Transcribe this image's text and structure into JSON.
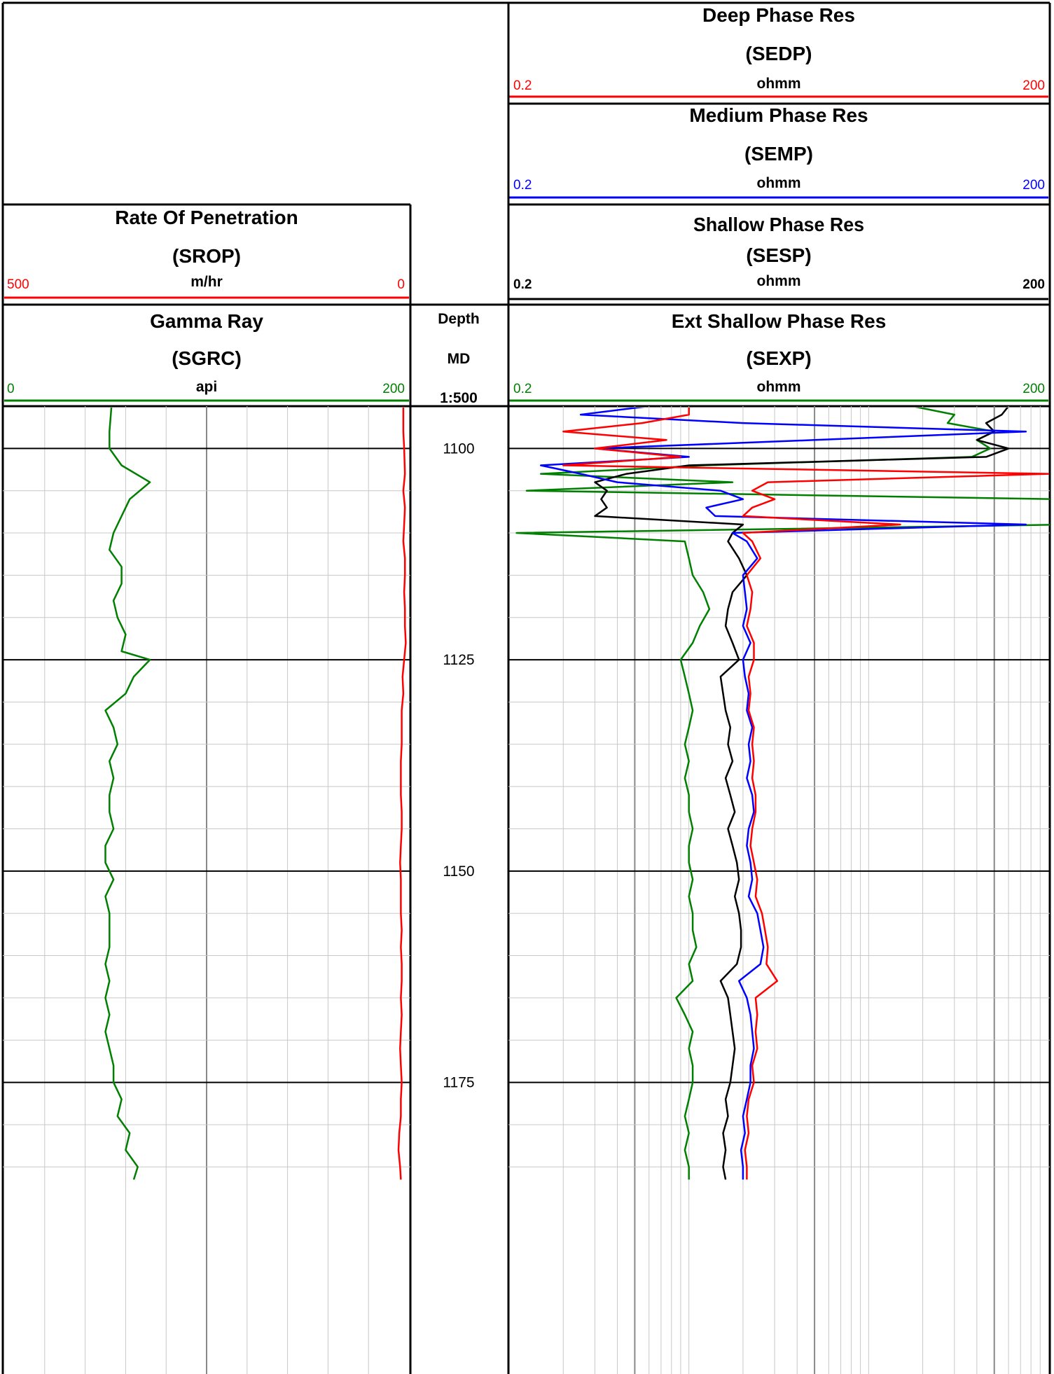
{
  "headers": {
    "deep": {
      "title": "Deep Phase Res",
      "mnemonic": "(SEDP)",
      "unit": "ohmm",
      "min": "0.2",
      "max": "200",
      "color": "#ff0000"
    },
    "medium": {
      "title": "Medium Phase Res",
      "mnemonic": "(SEMP)",
      "unit": "ohmm",
      "min": "0.2",
      "max": "200",
      "color": "#0000ff"
    },
    "shallow": {
      "title": "Shallow Phase Res",
      "mnemonic": "(SESP)",
      "unit": "ohmm",
      "min": "0.2",
      "max": "200",
      "color": "#000000"
    },
    "extshallow": {
      "title": "Ext Shallow Phase Res",
      "mnemonic": "(SEXP)",
      "unit": "ohmm",
      "min": "0.2",
      "max": "200",
      "color": "#008000"
    },
    "rop": {
      "title": "Rate Of Penetration",
      "mnemonic": "(SROP)",
      "unit": "m/hr",
      "min": "500",
      "max": "0",
      "color": "#ff0000"
    },
    "gamma": {
      "title": "Gamma Ray",
      "mnemonic": "(SGRC)",
      "unit": "api",
      "min": "0",
      "max": "200",
      "color": "#008000"
    },
    "depth": {
      "title": "Depth",
      "mnemonic": "MD",
      "scale": "1:500"
    }
  },
  "chart_data": {
    "type": "line",
    "depth_range": [
      1095,
      1186.5
    ],
    "depth_ticks": [
      "1100",
      "1125",
      "1150",
      "1175"
    ],
    "tracks": [
      {
        "name": "Rate Of Penetration",
        "scale": "linear",
        "range": [
          500,
          0
        ],
        "unit": "m/hr"
      },
      {
        "name": "Gamma Ray",
        "scale": "linear",
        "range": [
          0,
          200
        ],
        "unit": "api"
      },
      {
        "name": "Resistivity",
        "scale": "log",
        "range": [
          0.2,
          200
        ],
        "unit": "ohmm"
      }
    ],
    "series": [
      {
        "name": "SGRC",
        "track": 0,
        "scale": "linear",
        "range": [
          0,
          200
        ],
        "color": "#008000",
        "x": [
          1095,
          1098,
          1100,
          1102,
          1104,
          1106,
          1108,
          1110,
          1112,
          1114,
          1116,
          1118,
          1120,
          1122,
          1124,
          1125,
          1127,
          1129,
          1131,
          1133,
          1135,
          1137,
          1139,
          1141,
          1143,
          1145,
          1147,
          1149,
          1151,
          1153,
          1155,
          1157,
          1159,
          1161,
          1163,
          1165,
          1167,
          1169,
          1171,
          1173,
          1175,
          1177,
          1179,
          1181,
          1183,
          1185,
          1186.5
        ],
        "y": [
          53,
          52,
          52,
          58,
          72,
          62,
          58,
          54,
          52,
          58,
          58,
          54,
          56,
          60,
          58,
          72,
          64,
          60,
          50,
          54,
          56,
          52,
          54,
          52,
          52,
          54,
          50,
          50,
          54,
          50,
          52,
          52,
          52,
          50,
          52,
          50,
          52,
          50,
          52,
          54,
          54,
          58,
          56,
          62,
          60,
          66,
          64
        ]
      },
      {
        "name": "SROP",
        "track": 0,
        "scale": "linear",
        "range": [
          500,
          0
        ],
        "color": "#ff0000",
        "x": [
          1095,
          1098,
          1100,
          1103,
          1105,
          1107,
          1109,
          1111,
          1113,
          1115,
          1117,
          1119,
          1121,
          1123,
          1125,
          1127,
          1129,
          1131,
          1133,
          1135,
          1137,
          1139,
          1141,
          1143,
          1145,
          1147,
          1149,
          1151,
          1153,
          1155,
          1157,
          1159,
          1161,
          1163,
          1165,
          1167,
          1169,
          1171,
          1173,
          1175,
          1177,
          1179,
          1181,
          1183,
          1185,
          1186.5
        ],
        "y": [
          7,
          7,
          6,
          5,
          7,
          5,
          6,
          7,
          5,
          5,
          6,
          5,
          5,
          4,
          6,
          8,
          7,
          9,
          9,
          9,
          10,
          10,
          10,
          9,
          9,
          10,
          11,
          10,
          10,
          10,
          9,
          10,
          9,
          9,
          10,
          9,
          10,
          11,
          10,
          9,
          10,
          10,
          12,
          13,
          11,
          10
        ]
      },
      {
        "name": "SEXP",
        "track": 2,
        "scale": "log",
        "range": [
          0.2,
          200
        ],
        "color": "#008000",
        "x": [
          1095,
          1096,
          1097,
          1098,
          1099,
          1100,
          1101,
          1102,
          1103,
          1104,
          1105,
          1106,
          1107,
          1108,
          1109,
          1110,
          1111,
          1113,
          1115,
          1117,
          1119,
          1121,
          1123,
          1125,
          1127,
          1129,
          1131,
          1133,
          1135,
          1137,
          1139,
          1141,
          1143,
          1145,
          1147,
          1149,
          1151,
          1153,
          1155,
          1157,
          1159,
          1161,
          1163,
          1165,
          1167,
          1169,
          1171,
          1173,
          1175,
          1177,
          1179,
          1181,
          1183,
          1185,
          1186.5
        ],
        "y": [
          35,
          60,
          55,
          100,
          80,
          95,
          75,
          2.5,
          0.3,
          3.5,
          0.25,
          220,
          300,
          240,
          260,
          0.22,
          1.9,
          2.0,
          2.1,
          2.4,
          2.6,
          2.3,
          2.1,
          1.8,
          1.9,
          2.0,
          2.1,
          2.0,
          1.9,
          2.0,
          1.9,
          2.0,
          2.0,
          2.1,
          2.0,
          2.0,
          2.1,
          2.0,
          2.1,
          2.1,
          2.2,
          2.0,
          2.1,
          1.7,
          1.9,
          2.1,
          2.0,
          2.1,
          2.1,
          2.0,
          1.9,
          2.0,
          1.9,
          2.0,
          2.0
        ]
      },
      {
        "name": "SESP",
        "track": 2,
        "scale": "log",
        "range": [
          0.2,
          200
        ],
        "color": "#000000",
        "x": [
          1095,
          1096,
          1097,
          1098,
          1099,
          1100,
          1101,
          1102,
          1103,
          1104,
          1105,
          1106,
          1107,
          1108,
          1109,
          1110,
          1111,
          1113,
          1115,
          1117,
          1119,
          1121,
          1123,
          1125,
          1127,
          1129,
          1131,
          1133,
          1135,
          1137,
          1139,
          1141,
          1143,
          1145,
          1147,
          1149,
          1151,
          1153,
          1155,
          1157,
          1159,
          1161,
          1163,
          1165,
          1167,
          1169,
          1171,
          1173,
          1175,
          1177,
          1179,
          1181,
          1183,
          1185,
          1186.5
        ],
        "y": [
          120,
          110,
          90,
          100,
          80,
          120,
          90,
          2.0,
          0.9,
          0.6,
          0.7,
          0.65,
          0.7,
          0.6,
          4.0,
          3.5,
          3.3,
          3.8,
          4.2,
          3.5,
          3.3,
          3.2,
          3.5,
          3.8,
          3.0,
          3.1,
          3.2,
          3.4,
          3.3,
          3.5,
          3.2,
          3.4,
          3.6,
          3.3,
          3.5,
          3.7,
          3.8,
          3.6,
          3.8,
          3.9,
          3.9,
          3.7,
          3.0,
          3.3,
          3.4,
          3.5,
          3.6,
          3.5,
          3.4,
          3.2,
          3.3,
          3.1,
          3.2,
          3.1,
          3.2
        ]
      },
      {
        "name": "SEMP",
        "track": 2,
        "scale": "log",
        "range": [
          0.2,
          200
        ],
        "color": "#0000ff",
        "x": [
          1095,
          1096,
          1097,
          1098,
          1099,
          1100,
          1101,
          1102,
          1103,
          1104,
          1105,
          1106,
          1107,
          1108,
          1109,
          1110,
          1111,
          1113,
          1115,
          1117,
          1119,
          1121,
          1123,
          1125,
          1127,
          1129,
          1131,
          1133,
          1135,
          1137,
          1139,
          1141,
          1143,
          1145,
          1147,
          1149,
          1151,
          1153,
          1155,
          1157,
          1159,
          1161,
          1163,
          1165,
          1167,
          1169,
          1171,
          1173,
          1175,
          1177,
          1179,
          1181,
          1183,
          1185,
          1186.5
        ],
        "y": [
          1.2,
          0.5,
          4.0,
          150,
          10,
          0.6,
          2.0,
          0.3,
          0.5,
          0.8,
          3.0,
          4.0,
          2.5,
          2.8,
          150,
          3.5,
          4.2,
          4.8,
          4.0,
          4.1,
          4.2,
          4.0,
          4.4,
          4.0,
          4.1,
          4.3,
          4.2,
          4.5,
          4.3,
          4.4,
          4.2,
          4.5,
          4.6,
          4.3,
          4.2,
          4.4,
          4.5,
          4.3,
          4.8,
          5.0,
          5.2,
          5.0,
          3.8,
          4.2,
          4.4,
          4.5,
          4.6,
          4.4,
          4.4,
          4.2,
          4.0,
          4.1,
          3.9,
          4.0,
          4.0
        ]
      },
      {
        "name": "SEDP",
        "track": 2,
        "scale": "log",
        "range": [
          0.2,
          200
        ],
        "color": "#ff0000",
        "x": [
          1095,
          1096,
          1097,
          1098,
          1099,
          1100,
          1101,
          1102,
          1103,
          1104,
          1105,
          1106,
          1107,
          1108,
          1109,
          1110,
          1111,
          1113,
          1115,
          1117,
          1119,
          1121,
          1123,
          1125,
          1127,
          1129,
          1131,
          1133,
          1135,
          1137,
          1139,
          1141,
          1143,
          1145,
          1147,
          1149,
          1151,
          1153,
          1155,
          1157,
          1159,
          1161,
          1163,
          1165,
          1167,
          1169,
          1171,
          1173,
          1175,
          1177,
          1179,
          1181,
          1183,
          1185,
          1186.5
        ],
        "y": [
          2.0,
          2.0,
          1.1,
          0.4,
          1.5,
          0.6,
          1.8,
          0.4,
          200,
          5.5,
          4.5,
          6.0,
          4.5,
          4.0,
          30,
          4.0,
          4.5,
          5.0,
          4.2,
          4.5,
          4.4,
          4.2,
          4.6,
          4.6,
          4.3,
          4.4,
          4.3,
          4.6,
          4.5,
          4.6,
          4.5,
          4.7,
          4.7,
          4.5,
          4.4,
          4.6,
          4.8,
          4.7,
          5.1,
          5.3,
          5.5,
          5.4,
          6.2,
          4.7,
          4.8,
          4.7,
          4.8,
          4.5,
          4.6,
          4.3,
          4.2,
          4.3,
          4.1,
          4.2,
          4.2
        ]
      }
    ]
  }
}
